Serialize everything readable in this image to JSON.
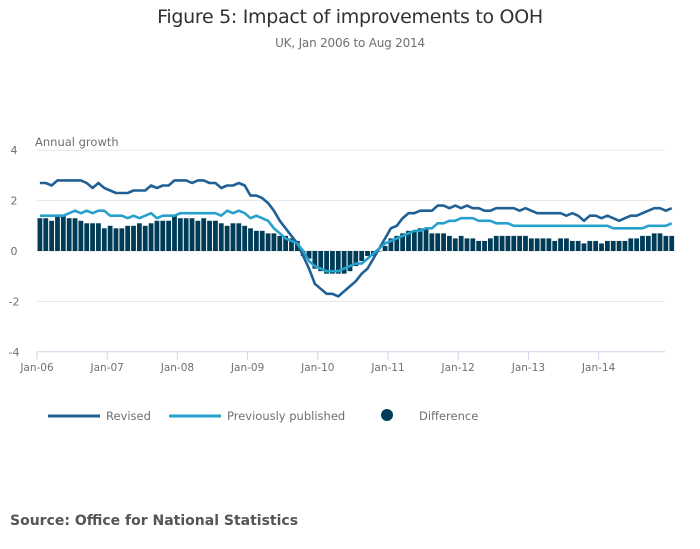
{
  "chart_data": {
    "type": "bar+line",
    "title": "Figure 5: Impact of improvements to OOH",
    "subtitle": "UK, Jan 2006 to Aug 2014",
    "ylabel": "Annual growth",
    "xlabel": "",
    "ylim": [
      -4,
      4
    ],
    "yticks": [
      "4",
      "2",
      "0",
      "-2",
      "-4"
    ],
    "ytick_values": [
      4,
      2,
      0,
      -2,
      -4
    ],
    "xticks": [
      "Jan-06",
      "Jan-07",
      "Jan-08",
      "Jan-09",
      "Jan-10",
      "Jan-11",
      "Jan-12",
      "Jan-13",
      "Jan-14"
    ],
    "start": "Jan-06",
    "grid": true,
    "legend_position": "bottom-left",
    "series": [
      {
        "name": "Revised",
        "type": "line",
        "color": "#206095",
        "values": [
          2.7,
          2.7,
          2.6,
          2.8,
          2.8,
          2.8,
          2.8,
          2.8,
          2.7,
          2.5,
          2.7,
          2.5,
          2.4,
          2.3,
          2.3,
          2.3,
          2.4,
          2.4,
          2.4,
          2.6,
          2.5,
          2.6,
          2.6,
          2.8,
          2.8,
          2.8,
          2.7,
          2.8,
          2.8,
          2.7,
          2.7,
          2.5,
          2.6,
          2.6,
          2.7,
          2.6,
          2.2,
          2.2,
          2.1,
          1.9,
          1.6,
          1.2,
          0.9,
          0.6,
          0.3,
          -0.2,
          -0.7,
          -1.3,
          -1.5,
          -1.7,
          -1.7,
          -1.8,
          -1.6,
          -1.4,
          -1.2,
          -0.9,
          -0.7,
          -0.3,
          0.1,
          0.5,
          0.9,
          1.0,
          1.3,
          1.5,
          1.5,
          1.6,
          1.6,
          1.6,
          1.8,
          1.8,
          1.7,
          1.8,
          1.7,
          1.8,
          1.7,
          1.7,
          1.6,
          1.6,
          1.7,
          1.7,
          1.7,
          1.7,
          1.6,
          1.7,
          1.6,
          1.5,
          1.5,
          1.5,
          1.5,
          1.5,
          1.4,
          1.5,
          1.4,
          1.2,
          1.4,
          1.4,
          1.3,
          1.4,
          1.3,
          1.2,
          1.3,
          1.4,
          1.4,
          1.5,
          1.6,
          1.7,
          1.7,
          1.6,
          1.7
        ]
      },
      {
        "name": "Previously published",
        "type": "line",
        "color": "#27a0cc",
        "values": [
          1.4,
          1.4,
          1.4,
          1.4,
          1.4,
          1.5,
          1.6,
          1.5,
          1.6,
          1.5,
          1.6,
          1.6,
          1.4,
          1.4,
          1.4,
          1.3,
          1.4,
          1.3,
          1.4,
          1.5,
          1.3,
          1.4,
          1.4,
          1.4,
          1.5,
          1.5,
          1.5,
          1.5,
          1.5,
          1.5,
          1.5,
          1.4,
          1.6,
          1.5,
          1.6,
          1.5,
          1.3,
          1.4,
          1.3,
          1.2,
          0.9,
          0.7,
          0.5,
          0.4,
          0.3,
          0.0,
          -0.4,
          -0.6,
          -0.7,
          -0.8,
          -0.8,
          -0.8,
          -0.7,
          -0.6,
          -0.5,
          -0.5,
          -0.3,
          -0.1,
          0.1,
          0.3,
          0.4,
          0.5,
          0.6,
          0.7,
          0.8,
          0.8,
          0.9,
          0.9,
          1.1,
          1.1,
          1.2,
          1.2,
          1.3,
          1.3,
          1.3,
          1.2,
          1.2,
          1.2,
          1.1,
          1.1,
          1.1,
          1.0,
          1.0,
          1.0,
          1.0,
          1.0,
          1.0,
          1.0,
          1.0,
          1.0,
          1.0,
          1.0,
          1.0,
          1.0,
          1.0,
          1.0,
          1.0,
          1.0,
          0.9,
          0.9,
          0.9,
          0.9,
          0.9,
          0.9,
          1.0,
          1.0,
          1.0,
          1.0,
          1.1
        ]
      },
      {
        "name": "Difference",
        "type": "bar",
        "color": "#003c57",
        "values": [
          1.3,
          1.3,
          1.2,
          1.4,
          1.4,
          1.3,
          1.3,
          1.2,
          1.1,
          1.1,
          1.1,
          0.9,
          1.0,
          0.9,
          0.9,
          1.0,
          1.0,
          1.1,
          1.0,
          1.1,
          1.2,
          1.2,
          1.2,
          1.4,
          1.3,
          1.3,
          1.3,
          1.2,
          1.3,
          1.2,
          1.2,
          1.1,
          1.0,
          1.1,
          1.1,
          1.0,
          0.9,
          0.8,
          0.8,
          0.7,
          0.7,
          0.6,
          0.6,
          0.5,
          0.4,
          -0.2,
          -0.3,
          -0.7,
          -0.8,
          -0.9,
          -0.9,
          -0.9,
          -0.9,
          -0.8,
          -0.6,
          -0.4,
          -0.2,
          -0.2,
          0.0,
          0.2,
          0.5,
          0.6,
          0.7,
          0.8,
          0.8,
          0.9,
          0.9,
          0.7,
          0.7,
          0.7,
          0.6,
          0.5,
          0.6,
          0.5,
          0.5,
          0.4,
          0.4,
          0.5,
          0.6,
          0.6,
          0.6,
          0.6,
          0.6,
          0.6,
          0.5,
          0.5,
          0.5,
          0.5,
          0.4,
          0.5,
          0.5,
          0.4,
          0.4,
          0.3,
          0.4,
          0.4,
          0.3,
          0.4,
          0.4,
          0.4,
          0.4,
          0.5,
          0.5,
          0.6,
          0.6,
          0.7,
          0.7,
          0.6,
          0.6
        ]
      }
    ]
  },
  "source": "Source: Office for National Statistics"
}
